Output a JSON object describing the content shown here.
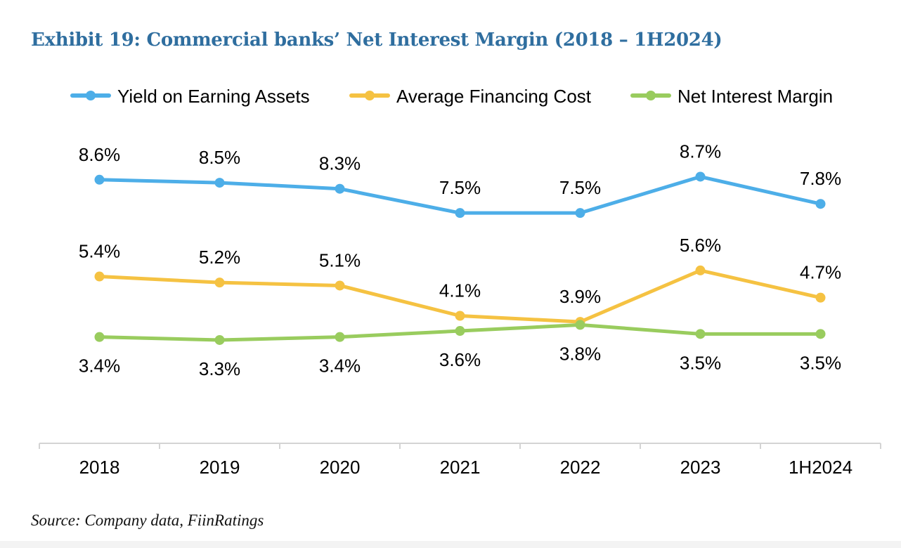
{
  "title": "Exhibit 19: Commercial banks’ Net Interest Margin (2018 – 1H2024)",
  "source": "Source: Company data, FiinRatings",
  "chart_data": {
    "type": "line",
    "title": "Exhibit 19: Commercial banks’ Net Interest Margin (2018 – 1H2024)",
    "xlabel": "",
    "ylabel": "",
    "categories": [
      "2018",
      "2019",
      "2020",
      "2021",
      "2022",
      "2023",
      "1H2024"
    ],
    "ylim": [
      0,
      10.5
    ],
    "grid": false,
    "legend_position": "top",
    "series": [
      {
        "name": "Yield on Earning Assets",
        "color": "#4daee8",
        "values": [
          8.6,
          8.5,
          8.3,
          7.5,
          7.5,
          8.7,
          7.8
        ],
        "labels": [
          "8.6%",
          "8.5%",
          "8.3%",
          "7.5%",
          "7.5%",
          "8.7%",
          "7.8%"
        ],
        "label_position": "above"
      },
      {
        "name": "Average Financing Cost",
        "color": "#f5c242",
        "values": [
          5.4,
          5.2,
          5.1,
          4.1,
          3.9,
          5.6,
          4.7
        ],
        "labels": [
          "5.4%",
          "5.2%",
          "5.1%",
          "4.1%",
          "3.9%",
          "5.6%",
          "4.7%"
        ],
        "label_position": "above"
      },
      {
        "name": "Net Interest Margin",
        "color": "#99cc5e",
        "values": [
          3.4,
          3.3,
          3.4,
          3.6,
          3.8,
          3.5,
          3.5
        ],
        "labels": [
          "3.4%",
          "3.3%",
          "3.4%",
          "3.6%",
          "3.8%",
          "3.5%",
          "3.5%"
        ],
        "label_position": "below"
      }
    ]
  }
}
